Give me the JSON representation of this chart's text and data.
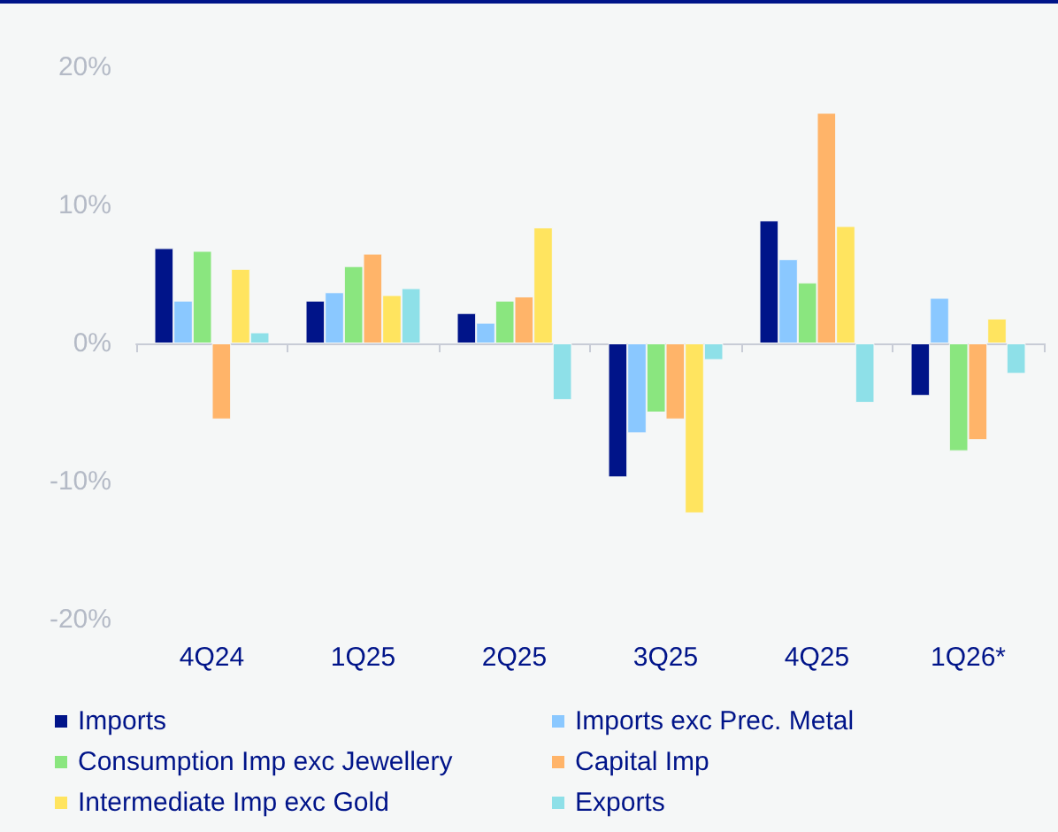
{
  "chart_data": {
    "type": "bar",
    "categories": [
      "4Q24",
      "1Q25",
      "2Q25",
      "3Q25",
      "4Q25",
      "1Q26*"
    ],
    "series": [
      {
        "name": "Imports",
        "color": "#001489",
        "values": [
          6.9,
          3.1,
          2.2,
          -9.7,
          8.9,
          -3.8
        ]
      },
      {
        "name": "Imports exc Prec. Metal",
        "color": "#8ac8ff",
        "values": [
          3.1,
          3.7,
          1.5,
          -6.5,
          6.1,
          3.3
        ]
      },
      {
        "name": "Consumption Imp exc Jewellery",
        "color": "#8ae67f",
        "values": [
          6.7,
          5.6,
          3.1,
          -5.0,
          4.4,
          -7.8
        ]
      },
      {
        "name": "Capital Imp",
        "color": "#ffb469",
        "values": [
          -5.5,
          6.5,
          3.4,
          -5.5,
          16.7,
          -7.0
        ]
      },
      {
        "name": "Intermediate Imp exc Gold",
        "color": "#ffe45f",
        "values": [
          5.4,
          3.5,
          8.4,
          -12.3,
          8.5,
          1.8
        ]
      },
      {
        "name": "Exports",
        "color": "#8ee0e8",
        "values": [
          0.8,
          4.0,
          -4.1,
          -1.2,
          -4.3,
          -2.2
        ]
      }
    ],
    "ylim": [
      -20,
      20
    ],
    "yticks": [
      {
        "value": -20,
        "label": "-20%"
      },
      {
        "value": -10,
        "label": "-10%"
      },
      {
        "value": 0,
        "label": "0%"
      },
      {
        "value": 10,
        "label": "10%"
      },
      {
        "value": 20,
        "label": "20%"
      }
    ],
    "legend": "bottom"
  }
}
